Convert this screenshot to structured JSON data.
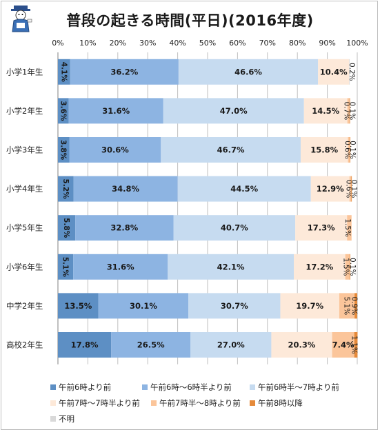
{
  "chart_data": {
    "type": "bar",
    "orientation": "horizontal",
    "stacked": true,
    "title": "普段の起きる時間(平日)(2016年度)",
    "xlim": [
      0,
      100
    ],
    "x_tick_labels": [
      "0%",
      "10%",
      "20%",
      "30%",
      "40%",
      "50%",
      "60%",
      "70%",
      "80%",
      "90%",
      "100%"
    ],
    "categories": [
      "小学1年生",
      "小学2年生",
      "小学3年生",
      "小学4年生",
      "小学5年生",
      "小学6年生",
      "中学2年生",
      "高校2年生"
    ],
    "series": [
      {
        "name": "午前6時より前",
        "color": "#5d8fc4",
        "values": [
          4.1,
          3.6,
          3.8,
          5.2,
          5.8,
          5.1,
          13.5,
          17.8
        ],
        "labels": [
          "4.1%",
          "3.6%",
          "3.8%",
          "5.2%",
          "5.8%",
          "5.1%",
          "13.5%",
          "17.8%"
        ]
      },
      {
        "name": "午前6時～6時半より前",
        "color": "#8db4e2",
        "values": [
          36.2,
          31.6,
          30.6,
          34.8,
          32.8,
          31.6,
          30.1,
          26.5
        ],
        "labels": [
          "36.2%",
          "31.6%",
          "30.6%",
          "34.8%",
          "32.8%",
          "31.6%",
          "30.1%",
          "26.5%"
        ]
      },
      {
        "name": "午前6時半～7時より前",
        "color": "#c6dbf0",
        "values": [
          46.6,
          47.0,
          46.7,
          44.5,
          40.7,
          42.1,
          30.7,
          27.0
        ],
        "labels": [
          "46.6%",
          "47.0%",
          "46.7%",
          "44.5%",
          "40.7%",
          "42.1%",
          "30.7%",
          "27.0%"
        ]
      },
      {
        "name": "午前7時～7時半より前",
        "color": "#fde9d9",
        "values": [
          10.4,
          14.5,
          15.8,
          12.9,
          17.3,
          17.2,
          19.7,
          20.3
        ],
        "labels": [
          "10.4%",
          "14.5%",
          "15.8%",
          "12.9%",
          "17.3%",
          "17.2%",
          "19.7%",
          "20.3%"
        ]
      },
      {
        "name": "午前7時半～8時より前",
        "color": "#fbc59a",
        "values": [
          0.0,
          0.7,
          0.6,
          0.6,
          1.5,
          1.5,
          5.1,
          7.4
        ],
        "labels": [
          "",
          "0.7%",
          "0.6%",
          "0.6%",
          "1.5%",
          "1.5%",
          "5.1%",
          "7.4%"
        ]
      },
      {
        "name": "午前8時以降",
        "color": "#e58a3a",
        "values": [
          0.0,
          0.1,
          0.1,
          0.1,
          0.0,
          0.1,
          0.9,
          1.1
        ],
        "labels": [
          "",
          "0.1%",
          "0.1%",
          "0.1%",
          "",
          "0.1%",
          "0.9%",
          "1.1%"
        ]
      },
      {
        "name": "不明",
        "color": "#d9d9d9",
        "values": [
          0.2,
          0.0,
          0.0,
          0.0,
          0.0,
          0.0,
          0.0,
          0.0
        ],
        "labels": [
          "0.2%",
          "",
          "",
          "",
          "",
          "",
          "",
          ""
        ]
      }
    ],
    "legend_position": "bottom",
    "grid": true
  }
}
